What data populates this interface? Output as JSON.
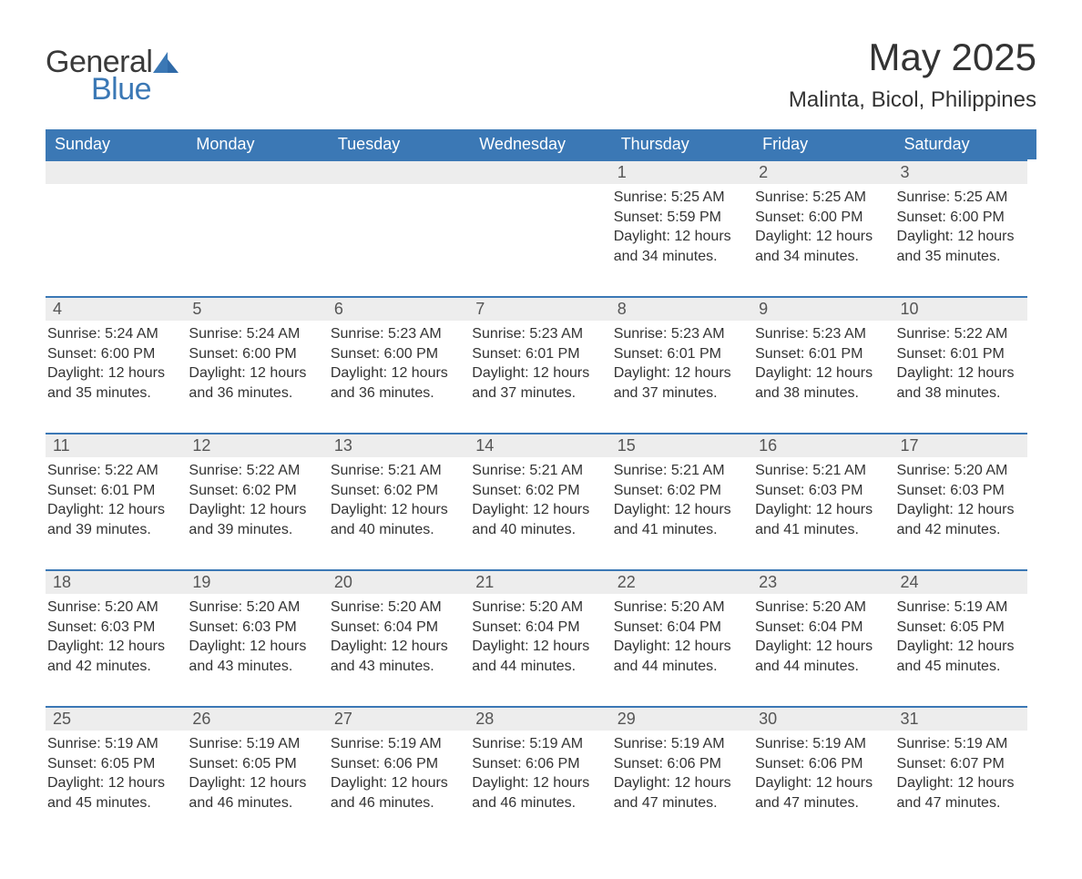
{
  "brand": {
    "name_part1": "General",
    "name_part2": "Blue",
    "accent_color": "#3b78b5"
  },
  "header": {
    "month_title": "May 2025",
    "location": "Malinta, Bicol, Philippines"
  },
  "styling": {
    "header_bg": "#3b78b5",
    "header_text_color": "#ffffff",
    "daynum_bg": "#ededed",
    "daynum_border_top": "#3b78b5",
    "body_text_color": "#333333",
    "font_family": "Arial",
    "month_title_fontsize_pt": 32,
    "location_fontsize_pt": 18,
    "weekday_fontsize_pt": 14,
    "body_fontsize_pt": 12
  },
  "weekdays": [
    "Sunday",
    "Monday",
    "Tuesday",
    "Wednesday",
    "Thursday",
    "Friday",
    "Saturday"
  ],
  "weeks": [
    [
      null,
      null,
      null,
      null,
      {
        "n": "1",
        "sunrise": "5:25 AM",
        "sunset": "5:59 PM",
        "daylight": "12 hours and 34 minutes."
      },
      {
        "n": "2",
        "sunrise": "5:25 AM",
        "sunset": "6:00 PM",
        "daylight": "12 hours and 34 minutes."
      },
      {
        "n": "3",
        "sunrise": "5:25 AM",
        "sunset": "6:00 PM",
        "daylight": "12 hours and 35 minutes."
      }
    ],
    [
      {
        "n": "4",
        "sunrise": "5:24 AM",
        "sunset": "6:00 PM",
        "daylight": "12 hours and 35 minutes."
      },
      {
        "n": "5",
        "sunrise": "5:24 AM",
        "sunset": "6:00 PM",
        "daylight": "12 hours and 36 minutes."
      },
      {
        "n": "6",
        "sunrise": "5:23 AM",
        "sunset": "6:00 PM",
        "daylight": "12 hours and 36 minutes."
      },
      {
        "n": "7",
        "sunrise": "5:23 AM",
        "sunset": "6:01 PM",
        "daylight": "12 hours and 37 minutes."
      },
      {
        "n": "8",
        "sunrise": "5:23 AM",
        "sunset": "6:01 PM",
        "daylight": "12 hours and 37 minutes."
      },
      {
        "n": "9",
        "sunrise": "5:23 AM",
        "sunset": "6:01 PM",
        "daylight": "12 hours and 38 minutes."
      },
      {
        "n": "10",
        "sunrise": "5:22 AM",
        "sunset": "6:01 PM",
        "daylight": "12 hours and 38 minutes."
      }
    ],
    [
      {
        "n": "11",
        "sunrise": "5:22 AM",
        "sunset": "6:01 PM",
        "daylight": "12 hours and 39 minutes."
      },
      {
        "n": "12",
        "sunrise": "5:22 AM",
        "sunset": "6:02 PM",
        "daylight": "12 hours and 39 minutes."
      },
      {
        "n": "13",
        "sunrise": "5:21 AM",
        "sunset": "6:02 PM",
        "daylight": "12 hours and 40 minutes."
      },
      {
        "n": "14",
        "sunrise": "5:21 AM",
        "sunset": "6:02 PM",
        "daylight": "12 hours and 40 minutes."
      },
      {
        "n": "15",
        "sunrise": "5:21 AM",
        "sunset": "6:02 PM",
        "daylight": "12 hours and 41 minutes."
      },
      {
        "n": "16",
        "sunrise": "5:21 AM",
        "sunset": "6:03 PM",
        "daylight": "12 hours and 41 minutes."
      },
      {
        "n": "17",
        "sunrise": "5:20 AM",
        "sunset": "6:03 PM",
        "daylight": "12 hours and 42 minutes."
      }
    ],
    [
      {
        "n": "18",
        "sunrise": "5:20 AM",
        "sunset": "6:03 PM",
        "daylight": "12 hours and 42 minutes."
      },
      {
        "n": "19",
        "sunrise": "5:20 AM",
        "sunset": "6:03 PM",
        "daylight": "12 hours and 43 minutes."
      },
      {
        "n": "20",
        "sunrise": "5:20 AM",
        "sunset": "6:04 PM",
        "daylight": "12 hours and 43 minutes."
      },
      {
        "n": "21",
        "sunrise": "5:20 AM",
        "sunset": "6:04 PM",
        "daylight": "12 hours and 44 minutes."
      },
      {
        "n": "22",
        "sunrise": "5:20 AM",
        "sunset": "6:04 PM",
        "daylight": "12 hours and 44 minutes."
      },
      {
        "n": "23",
        "sunrise": "5:20 AM",
        "sunset": "6:04 PM",
        "daylight": "12 hours and 44 minutes."
      },
      {
        "n": "24",
        "sunrise": "5:19 AM",
        "sunset": "6:05 PM",
        "daylight": "12 hours and 45 minutes."
      }
    ],
    [
      {
        "n": "25",
        "sunrise": "5:19 AM",
        "sunset": "6:05 PM",
        "daylight": "12 hours and 45 minutes."
      },
      {
        "n": "26",
        "sunrise": "5:19 AM",
        "sunset": "6:05 PM",
        "daylight": "12 hours and 46 minutes."
      },
      {
        "n": "27",
        "sunrise": "5:19 AM",
        "sunset": "6:06 PM",
        "daylight": "12 hours and 46 minutes."
      },
      {
        "n": "28",
        "sunrise": "5:19 AM",
        "sunset": "6:06 PM",
        "daylight": "12 hours and 46 minutes."
      },
      {
        "n": "29",
        "sunrise": "5:19 AM",
        "sunset": "6:06 PM",
        "daylight": "12 hours and 47 minutes."
      },
      {
        "n": "30",
        "sunrise": "5:19 AM",
        "sunset": "6:06 PM",
        "daylight": "12 hours and 47 minutes."
      },
      {
        "n": "31",
        "sunrise": "5:19 AM",
        "sunset": "6:07 PM",
        "daylight": "12 hours and 47 minutes."
      }
    ]
  ],
  "labels": {
    "sunrise": "Sunrise: ",
    "sunset": "Sunset: ",
    "daylight": "Daylight: "
  }
}
